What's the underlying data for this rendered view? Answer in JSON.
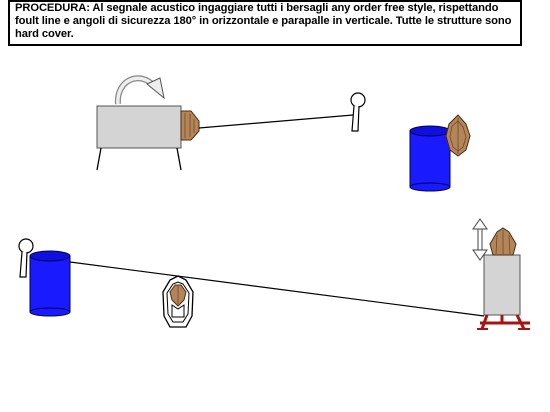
{
  "procedure": {
    "text": "PROCEDURA: Al segnale acustico ingaggiare tutti i bersagli any order free style, rispettando foult line e angoli di sicurezza 180° in orizzontale e parapalle in verticale. Tutte le strutture sono hard cover."
  },
  "colors": {
    "barrel": "#1a1aff",
    "barrel_top": "#0000cc",
    "wood": "#b5855a",
    "wood_dark": "#6e4a2a",
    "cover_gray": "#d4d4d4",
    "stand_red": "#aa1111",
    "line": "#000000"
  },
  "icons": {
    "rotation_arrow": "curved-arrow-icon",
    "vertical_arrow": "double-vertical-arrow-icon",
    "popper_target": "popper-target-icon",
    "hostage_target": "no-shoot-target-icon"
  }
}
